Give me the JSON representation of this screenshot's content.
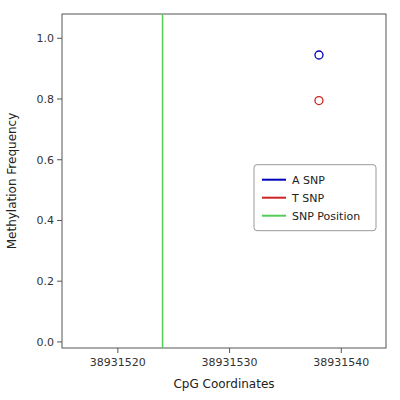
{
  "chart_data": {
    "type": "scatter",
    "xlabel": "CpG Coordinates",
    "ylabel": "Methylation Frequency",
    "series": [
      {
        "name": "A SNP",
        "color": "#0000bb",
        "marker": "open-circle",
        "x": [
          38931538
        ],
        "values": [
          0.945
        ]
      },
      {
        "name": "T SNP",
        "color": "#cc2222",
        "marker": "open-circle",
        "x": [
          38931538
        ],
        "values": [
          0.795
        ]
      },
      {
        "name": "SNP Position",
        "type": "vline",
        "color": "#55cc55",
        "x": [
          38931524
        ]
      }
    ],
    "xlim": [
      38931515,
      38931544
    ],
    "ylim": [
      -0.02,
      1.08
    ],
    "xticks": [
      38931520,
      38931530,
      38931540
    ],
    "yticks": [
      {
        "value": 0.0,
        "label": "0.0"
      },
      0.2,
      0.4,
      0.6,
      0.8,
      {
        "value": 1.0,
        "label": "1.0"
      }
    ],
    "grid": false,
    "legend": "right"
  }
}
